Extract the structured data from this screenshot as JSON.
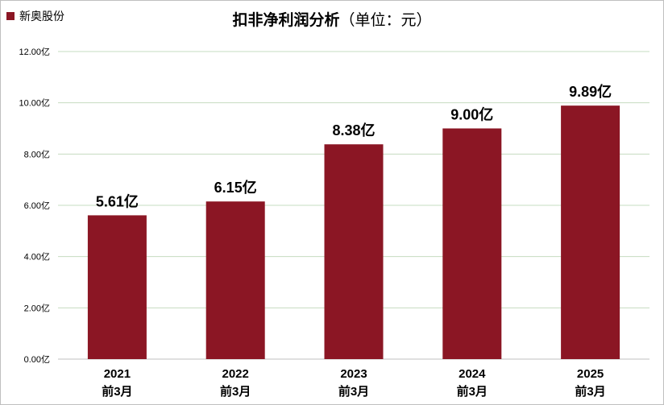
{
  "chart_data": {
    "type": "bar",
    "title": "扣非净利润分析",
    "subtitle": "（单位：元）",
    "categories": [
      {
        "year": "2021",
        "period": "前3月"
      },
      {
        "year": "2022",
        "period": "前3月"
      },
      {
        "year": "2023",
        "period": "前3月"
      },
      {
        "year": "2024",
        "period": "前3月"
      },
      {
        "year": "2025",
        "period": "前3月"
      }
    ],
    "series": [
      {
        "name": "新奥股份",
        "values": [
          5.61,
          6.15,
          8.38,
          9.0,
          9.89
        ],
        "value_labels": [
          "5.61亿",
          "6.15亿",
          "8.38亿",
          "9.00亿",
          "9.89亿"
        ]
      }
    ],
    "ylim": [
      0,
      12
    ],
    "yticks": [
      "0.00亿",
      "2.00亿",
      "4.00亿",
      "6.00亿",
      "8.00亿",
      "10.00亿",
      "12.00亿"
    ],
    "grid": true,
    "legend_position": "top-left",
    "colors": {
      "bar": "#8b1624",
      "grid": "#c6dcc0",
      "axis": "#bfbfbf"
    }
  }
}
